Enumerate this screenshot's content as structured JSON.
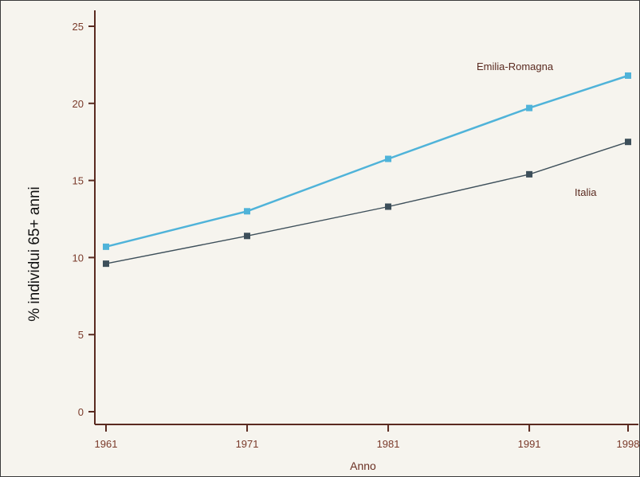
{
  "chart_data": {
    "type": "line",
    "title": "",
    "xlabel": "Anno",
    "ylabel": "% individui 65+ anni",
    "x": [
      1961,
      1971,
      1981,
      1991,
      1998
    ],
    "x_tick_labels": [
      "1961",
      "1971",
      "1981",
      "1991",
      "1998"
    ],
    "y_ticks": [
      0,
      5,
      10,
      15,
      20,
      25
    ],
    "y_tick_labels": [
      "0",
      "5",
      "10",
      "15",
      "20",
      "25"
    ],
    "xlim": [
      1961,
      1998
    ],
    "ylim": [
      0,
      25
    ],
    "grid": false,
    "legend": "none (series labelled directly on plot)",
    "series": [
      {
        "name": "Emilia-Romagna",
        "values": [
          10.7,
          13.0,
          16.4,
          19.7,
          21.8
        ],
        "color": "#4fb3d9"
      },
      {
        "name": "Italia",
        "values": [
          9.6,
          11.4,
          13.3,
          15.4,
          17.5
        ],
        "color": "#3d4f5a"
      }
    ]
  },
  "colors": {
    "axis": "#5a2a20",
    "background": "#f6f4ee"
  }
}
